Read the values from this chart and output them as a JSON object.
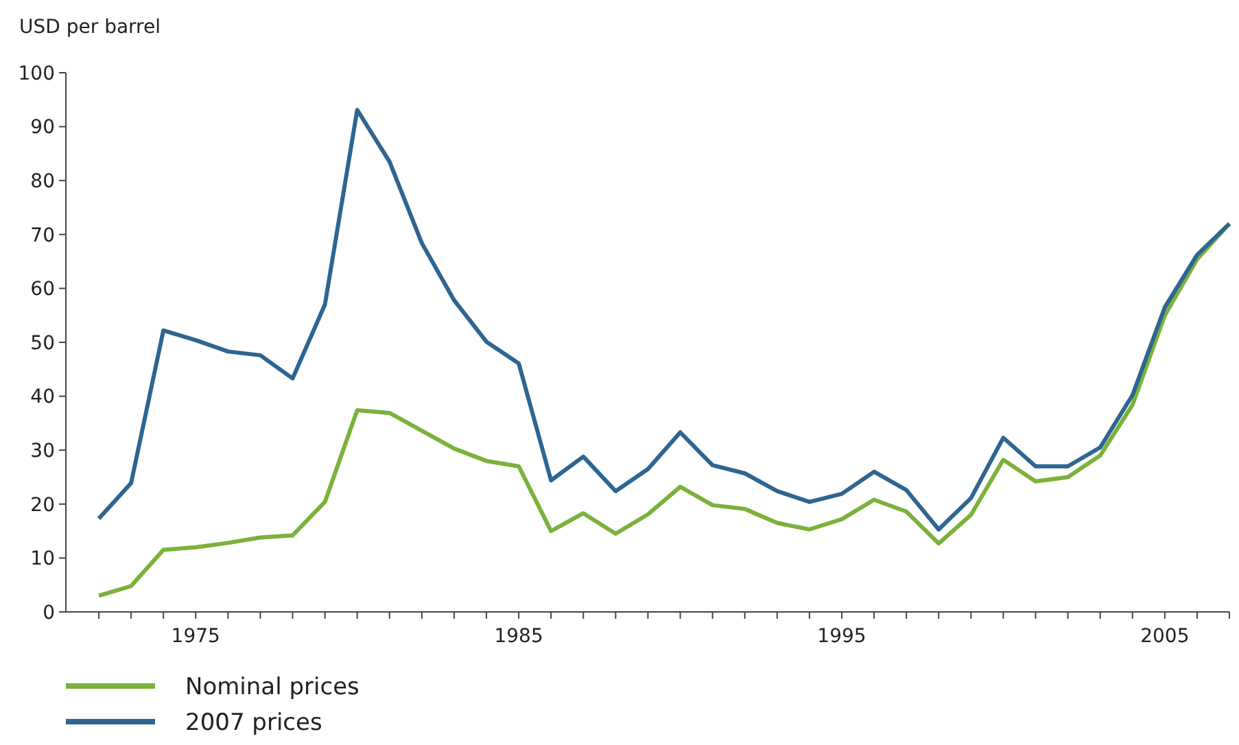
{
  "chart_data": {
    "type": "line",
    "ylabel": "USD per barrel",
    "categories": [
      null,
      null,
      null,
      "1975",
      null,
      null,
      null,
      null,
      null,
      null,
      null,
      null,
      null,
      "1985",
      null,
      null,
      null,
      null,
      null,
      null,
      null,
      null,
      null,
      "1995",
      null,
      null,
      null,
      null,
      null,
      null,
      null,
      null,
      null,
      "2005",
      null,
      null
    ],
    "series": [
      {
        "name": "Nominal prices",
        "color": "#7ab23a",
        "values": [
          3,
          4.8,
          11.5,
          12,
          12.8,
          13.8,
          14.2,
          20.4,
          37.4,
          36.9,
          33.6,
          30.3,
          28,
          27,
          15,
          18.3,
          14.5,
          18.1,
          23.2,
          19.8,
          19.1,
          16.5,
          15.3,
          17.2,
          20.8,
          18.6,
          12.7,
          18,
          28.2,
          24.2,
          25,
          29,
          38.4,
          55,
          65.4,
          72
        ]
      },
      {
        "name": "2007 prices",
        "color": "#2e6591",
        "values": [
          17.3,
          23.9,
          52.2,
          50.4,
          48.3,
          47.6,
          43.3,
          57,
          93.1,
          83.5,
          68.4,
          57.8,
          50.1,
          46.1,
          24.4,
          28.8,
          22.4,
          26.5,
          33.3,
          27.2,
          25.7,
          22.4,
          20.4,
          21.9,
          26,
          22.6,
          15.3,
          21.1,
          32.3,
          27,
          27,
          30.5,
          40.2,
          56.5,
          66.2,
          72
        ]
      }
    ],
    "ylim": [
      0,
      100
    ],
    "yticks": [
      0,
      10,
      20,
      30,
      40,
      50,
      60,
      70,
      80,
      90,
      100
    ],
    "grid": false,
    "legend": "bottom left",
    "marker": "none",
    "line_style": "solid"
  }
}
